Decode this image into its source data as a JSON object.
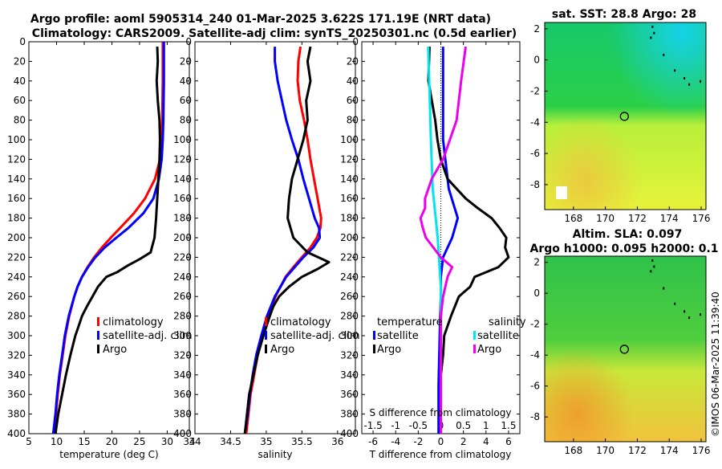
{
  "title": {
    "line1": "Argo profile: aoml 5905314_240 01-Mar-2025 3.622S 171.19E (NRT data)",
    "line2": "Climatology: CARS2009. Satellite-adj clim: synTS_20250301.nc (0.5d earlier)"
  },
  "colors": {
    "climatology": "#ff0000",
    "satellite": "#0000ff",
    "argo": "#000000",
    "s_satellite": "#00e5ee",
    "s_argo": "#ee00ee"
  },
  "depth_ticks": [
    "0",
    "20",
    "40",
    "60",
    "80",
    "100",
    "120",
    "140",
    "160",
    "180",
    "200",
    "220",
    "240",
    "260",
    "280",
    "300",
    "320",
    "340",
    "360",
    "380",
    "400"
  ],
  "legend": {
    "climatology": "climatology",
    "satellite": "satellite-adj. clim",
    "argo": "Argo"
  },
  "diff_legend": {
    "temperature": "temperature",
    "salinity": "salinity",
    "satellite": "satellite",
    "argo": "Argo"
  },
  "chart_data": [
    {
      "type": "line",
      "name": "temperature",
      "xlabel": "temperature (deg C)",
      "ylabel": "depth",
      "xlim": [
        5,
        34
      ],
      "ylim": [
        400,
        0
      ],
      "xticks": [
        "5",
        "10",
        "15",
        "20",
        "25",
        "30",
        "34"
      ],
      "series": [
        {
          "name": "climatology",
          "depth": [
            0,
            40,
            80,
            100,
            120,
            140,
            160,
            175,
            190,
            200,
            210,
            220,
            230,
            240,
            250,
            260,
            280,
            300,
            320,
            340,
            360,
            380,
            400
          ],
          "values": [
            29.2,
            29.2,
            29.1,
            29.0,
            28.7,
            27.8,
            26.0,
            24.0,
            21.5,
            19.8,
            18.2,
            16.8,
            15.6,
            14.6,
            13.8,
            13.2,
            12.3,
            11.6,
            11.1,
            10.6,
            10.2,
            9.9,
            9.6
          ]
        },
        {
          "name": "satellite-adj. clim",
          "depth": [
            0,
            40,
            80,
            100,
            120,
            140,
            160,
            175,
            190,
            200,
            210,
            220,
            230,
            240,
            250,
            260,
            280,
            300,
            320,
            340,
            360,
            380,
            400
          ],
          "values": [
            29.4,
            29.4,
            29.3,
            29.2,
            29.0,
            28.5,
            27.5,
            25.7,
            23.0,
            20.8,
            18.7,
            17.0,
            15.7,
            14.6,
            13.8,
            13.2,
            12.2,
            11.5,
            11.0,
            10.5,
            10.1,
            9.8,
            9.4
          ]
        },
        {
          "name": "Argo",
          "depth": [
            5,
            20,
            40,
            60,
            80,
            100,
            120,
            140,
            160,
            180,
            200,
            215,
            222,
            228,
            235,
            240,
            250,
            260,
            270,
            280,
            290,
            300,
            320,
            340,
            360,
            380,
            400
          ],
          "values": [
            28.2,
            28.3,
            28.1,
            28.3,
            28.6,
            28.7,
            28.6,
            28.4,
            28.2,
            28.0,
            27.7,
            27.0,
            25.0,
            23.0,
            21.0,
            19.0,
            17.5,
            16.5,
            15.5,
            14.6,
            14.0,
            13.4,
            12.5,
            11.7,
            11.0,
            10.3,
            9.8
          ]
        }
      ]
    },
    {
      "type": "line",
      "name": "salinity",
      "xlabel": "salinity",
      "ylabel": "depth",
      "xlim": [
        34,
        36.25
      ],
      "ylim": [
        400,
        0
      ],
      "xticks": [
        "34",
        "34.5",
        "35",
        "35.5",
        "36"
      ],
      "series": [
        {
          "name": "climatology",
          "depth": [
            5,
            20,
            40,
            60,
            80,
            100,
            120,
            140,
            160,
            180,
            190,
            200,
            210,
            220,
            230,
            240,
            260,
            280,
            300,
            320,
            340,
            360,
            380,
            400
          ],
          "values": [
            35.48,
            35.45,
            35.44,
            35.47,
            35.53,
            35.58,
            35.62,
            35.67,
            35.72,
            35.77,
            35.76,
            35.71,
            35.62,
            35.5,
            35.38,
            35.27,
            35.13,
            35.03,
            34.95,
            34.88,
            34.83,
            34.78,
            34.75,
            34.72
          ]
        },
        {
          "name": "satellite-adj. clim",
          "depth": [
            5,
            20,
            40,
            60,
            80,
            100,
            120,
            140,
            160,
            180,
            190,
            200,
            210,
            220,
            230,
            240,
            260,
            280,
            300,
            320,
            340,
            360,
            380,
            400
          ],
          "values": [
            35.12,
            35.12,
            35.16,
            35.22,
            35.28,
            35.36,
            35.45,
            35.52,
            35.6,
            35.68,
            35.74,
            35.75,
            35.66,
            35.52,
            35.4,
            35.28,
            35.12,
            35.01,
            34.93,
            34.86,
            34.81,
            34.77,
            34.74,
            34.7
          ]
        },
        {
          "name": "Argo",
          "depth": [
            5,
            20,
            40,
            60,
            80,
            100,
            120,
            140,
            160,
            180,
            200,
            215,
            225,
            232,
            240,
            250,
            260,
            270,
            280,
            300,
            320,
            340,
            360,
            380,
            400
          ],
          "values": [
            35.62,
            35.58,
            35.62,
            35.56,
            35.58,
            35.52,
            35.44,
            35.36,
            35.32,
            35.3,
            35.38,
            35.58,
            35.88,
            35.72,
            35.5,
            35.32,
            35.18,
            35.1,
            35.05,
            34.96,
            34.88,
            34.82,
            34.76,
            34.73,
            34.7
          ]
        }
      ]
    },
    {
      "type": "line",
      "name": "difference",
      "xlabel": "T difference from climatology",
      "xlabel_top": "S difference from climatology",
      "ylabel": "depth",
      "xlim": [
        -7,
        7
      ],
      "ylim": [
        400,
        0
      ],
      "xticks": [
        "-6",
        "-4",
        "-2",
        "0",
        "2",
        "4",
        "6"
      ],
      "xticks_s": [
        "-1.5",
        "-1",
        "-0.5",
        "0",
        "0.5",
        "1",
        "1.5"
      ],
      "series": [
        {
          "name": "T satellite",
          "depth": [
            5,
            50,
            100,
            150,
            180,
            200,
            220,
            240,
            260,
            300,
            350,
            400
          ],
          "values": [
            0.2,
            0.2,
            0.2,
            0.7,
            1.5,
            1.0,
            0.2,
            0.0,
            0.0,
            -0.1,
            -0.2,
            -0.2
          ]
        },
        {
          "name": "T Argo",
          "depth": [
            5,
            40,
            80,
            100,
            120,
            140,
            160,
            170,
            180,
            190,
            200,
            210,
            220,
            230,
            240,
            250,
            260,
            280,
            300,
            320,
            340,
            360,
            380,
            400
          ],
          "values": [
            -1.0,
            -1.1,
            -0.5,
            -0.3,
            0.0,
            0.6,
            2.2,
            3.3,
            4.5,
            5.2,
            5.8,
            5.7,
            6.0,
            5.1,
            3.0,
            2.6,
            1.6,
            0.9,
            0.3,
            0.2,
            0.0,
            0.0,
            0.0,
            0.0
          ]
        },
        {
          "name": "S satellite",
          "depth": [
            5,
            50,
            100,
            150,
            200,
            250,
            300,
            350,
            400
          ],
          "values": [
            -0.28,
            -0.25,
            -0.22,
            -0.18,
            -0.07,
            0.0,
            0.0,
            0.0,
            0.0
          ]
        },
        {
          "name": "S Argo",
          "depth": [
            5,
            40,
            80,
            100,
            120,
            140,
            160,
            170,
            180,
            190,
            200,
            220,
            230,
            240,
            250,
            260,
            280,
            300,
            320,
            340,
            360,
            380,
            400
          ],
          "values": [
            0.55,
            0.45,
            0.35,
            0.2,
            0.05,
            -0.2,
            -0.35,
            -0.35,
            -0.45,
            -0.4,
            -0.33,
            0.0,
            0.25,
            0.15,
            0.1,
            0.05,
            0.0,
            0.0,
            0.0,
            0.0,
            0.0,
            0.0,
            0.0
          ]
        }
      ]
    }
  ],
  "maps": [
    {
      "title": "sat. SST: 28.8 Argo: 28",
      "xticks": [
        "168",
        "170",
        "172",
        "174",
        "176"
      ],
      "yticks": [
        "2",
        "0",
        "-2",
        "-4",
        "-6",
        "-8"
      ],
      "xlim": [
        166.2,
        176.3
      ],
      "ylim": [
        -9.6,
        2.4
      ],
      "marker": {
        "lon": 171.19,
        "lat": -3.622
      }
    },
    {
      "title": "Altim. SLA: 0.097",
      "title2": "Argo h1000: 0.095 h2000: 0.1",
      "xticks": [
        "168",
        "170",
        "172",
        "174",
        "176"
      ],
      "yticks": [
        "2",
        "0",
        "-2",
        "-4",
        "-6",
        "-8"
      ],
      "xlim": [
        166.2,
        176.3
      ],
      "ylim": [
        -9.6,
        2.4
      ],
      "marker": {
        "lon": 171.19,
        "lat": -3.622
      }
    }
  ],
  "watermark": "©IMOS 06-Mar-2025 11:39:40"
}
